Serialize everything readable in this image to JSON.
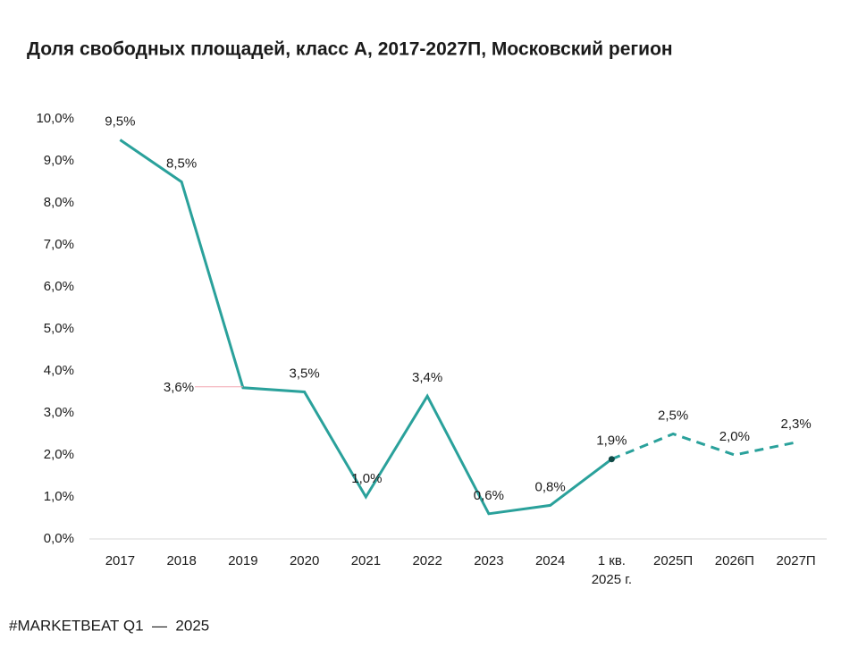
{
  "chart_data": {
    "type": "line",
    "title": "Доля свободных площадей, класс А, 2017-2027П, Московский регион",
    "categories": [
      "2017",
      "2018",
      "2019",
      "2020",
      "2021",
      "2022",
      "2023",
      "2024",
      "1 кв.\n2025 г.",
      "2025П",
      "2026П",
      "2027П"
    ],
    "values": [
      9.5,
      8.5,
      3.6,
      3.5,
      1.0,
      3.4,
      0.6,
      0.8,
      1.9,
      2.5,
      2.0,
      2.3
    ],
    "value_labels": [
      "9,5%",
      "8,5%",
      "3,6%",
      "3,5%",
      "1,0%",
      "3,4%",
      "0,6%",
      "0,8%",
      "1,9%",
      "2,5%",
      "2,0%",
      "2,3%"
    ],
    "color": "#2aa19b",
    "dashed_from": 8,
    "ylim": [
      0,
      10
    ],
    "yticks": [
      {
        "value": 0,
        "label": "0,0%"
      },
      {
        "value": 1,
        "label": "1,0%"
      },
      {
        "value": 2,
        "label": "2,0%"
      },
      {
        "value": 3,
        "label": "3,0%"
      },
      {
        "value": 4,
        "label": "4,0%"
      },
      {
        "value": 5,
        "label": "5,0%"
      },
      {
        "value": 6,
        "label": "6,0%"
      },
      {
        "value": 7,
        "label": "7,0%"
      },
      {
        "value": 8,
        "label": "8,0%"
      },
      {
        "value": 9,
        "label": "9,0%"
      },
      {
        "value": 10,
        "label": "10,0%"
      }
    ],
    "grid": false
  },
  "footer": "#MARKETBEAT Q1  —  2025"
}
